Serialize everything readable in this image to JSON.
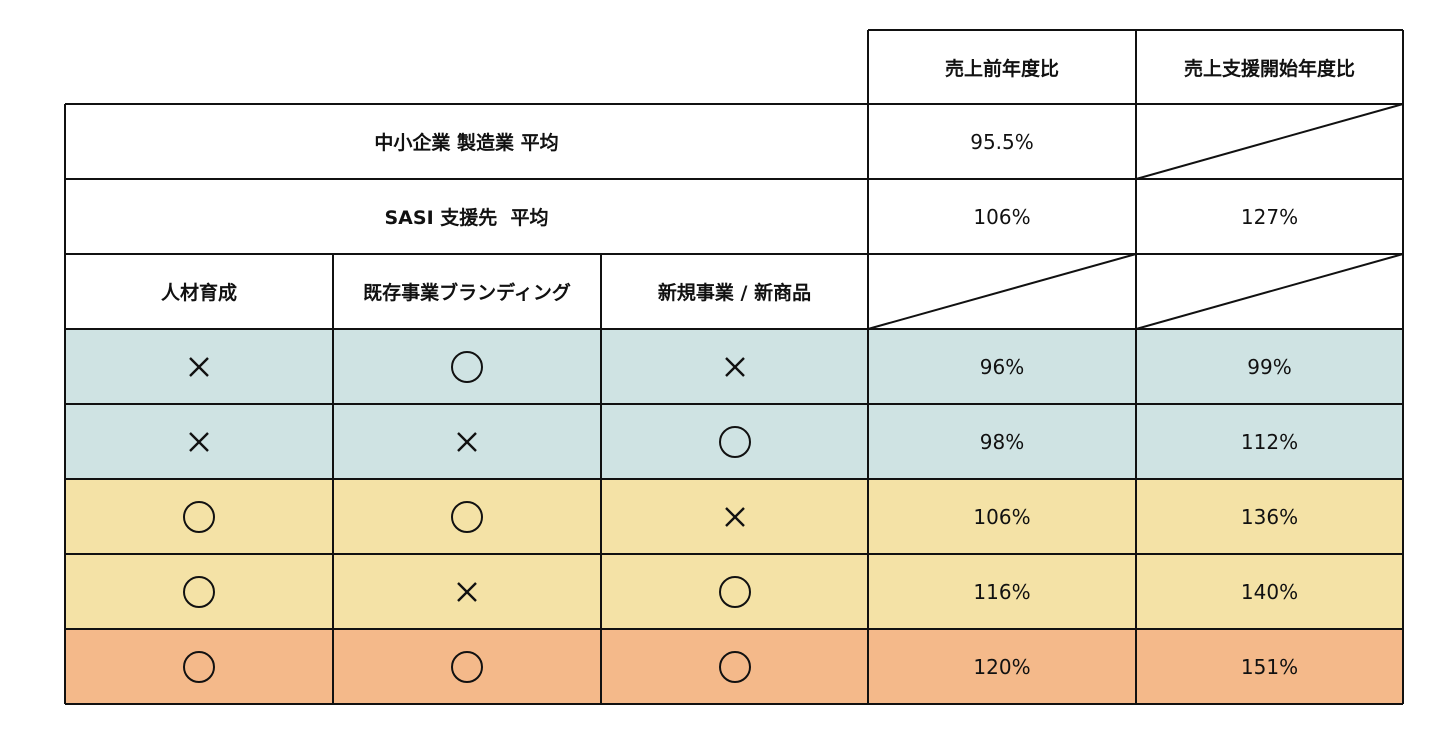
{
  "header": {
    "col_yoy": "売上前年度比",
    "col_since_start": "売上支援開始年度比"
  },
  "summary_rows": [
    {
      "label": "中小企業 製造業 平均",
      "yoy": "95.5%",
      "since_start": ""
    },
    {
      "label": "SASI 支援先  平均",
      "yoy": "106%",
      "since_start": "127%"
    }
  ],
  "factor_headers": [
    "人材育成",
    "既存事業ブランディング",
    "新規事業 / 新商品"
  ],
  "rows": [
    {
      "marks": [
        "×",
        "○",
        "×"
      ],
      "yoy": "96%",
      "since_start": "99%",
      "color": "#cfe3e3"
    },
    {
      "marks": [
        "×",
        "×",
        "○"
      ],
      "yoy": "98%",
      "since_start": "112%",
      "color": "#cfe3e3"
    },
    {
      "marks": [
        "○",
        "○",
        "×"
      ],
      "yoy": "106%",
      "since_start": "136%",
      "color": "#f4e2a6"
    },
    {
      "marks": [
        "○",
        "×",
        "○"
      ],
      "yoy": "116%",
      "since_start": "140%",
      "color": "#f4e2a6"
    },
    {
      "marks": [
        "○",
        "○",
        "○"
      ],
      "yoy": "120%",
      "since_start": "151%",
      "color": "#f4b98a"
    }
  ]
}
